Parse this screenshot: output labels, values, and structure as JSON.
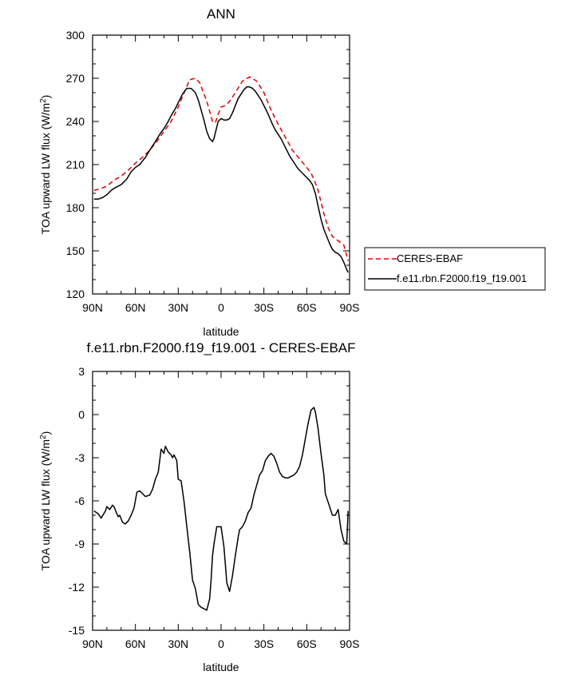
{
  "chart_data": [
    {
      "type": "line",
      "title": "ANN",
      "xlabel": "latitude",
      "ylabel": "TOA upward LW flux (W/m",
      "ylabel_sup": "2",
      "ylabel_end": ")",
      "xlim": [
        -90,
        90
      ],
      "ylim": [
        120,
        300
      ],
      "xtick_values": [
        -90,
        -60,
        -30,
        0,
        30,
        60,
        90
      ],
      "xtick_labels": [
        "90N",
        "60N",
        "30N",
        "0",
        "30S",
        "60S",
        "90S"
      ],
      "ytick_values": [
        120,
        150,
        180,
        210,
        240,
        270,
        300
      ],
      "ytick_labels": [
        "120",
        "150",
        "180",
        "210",
        "240",
        "270",
        "300"
      ],
      "grid": false,
      "legend_position": "outside-right",
      "series": [
        {
          "name": "CERES-EBAF",
          "color": "#dd0000",
          "dash": "dashed",
          "x": [
            -89,
            -85,
            -80,
            -75,
            -70,
            -65,
            -60,
            -55,
            -50,
            -45,
            -40,
            -35,
            -30,
            -25,
            -22,
            -18,
            -15,
            -10,
            -6,
            -4,
            -2,
            0,
            3,
            6,
            10,
            15,
            20,
            25,
            30,
            35,
            40,
            45,
            50,
            55,
            60,
            63,
            65,
            68,
            70,
            72,
            75,
            78,
            82,
            86,
            89
          ],
          "y": [
            192,
            193,
            195,
            199,
            202,
            206,
            211,
            215,
            220,
            226,
            233,
            240,
            250,
            262,
            269,
            270,
            267,
            254,
            240,
            239,
            245,
            250,
            251,
            254,
            260,
            268,
            271,
            268,
            260,
            248,
            238,
            229,
            220,
            214,
            208,
            204,
            200,
            192,
            184,
            176,
            166,
            160,
            157,
            154,
            143
          ]
        },
        {
          "name": "f.e11.rbn.F2000.f19_f19.001",
          "color": "#000000",
          "dash": "solid",
          "x": [
            -89,
            -86,
            -83,
            -80,
            -77,
            -74,
            -70,
            -66,
            -63,
            -60,
            -57,
            -53,
            -50,
            -46,
            -43,
            -40,
            -37,
            -35,
            -32,
            -30,
            -27,
            -24,
            -21,
            -18,
            -16,
            -14,
            -12,
            -10,
            -8,
            -6,
            -5,
            -4,
            -2,
            0,
            2,
            4,
            6,
            8,
            10,
            12,
            14,
            16,
            18,
            20,
            22,
            24,
            26,
            28,
            30,
            33,
            36,
            38,
            40,
            42,
            44,
            46,
            48,
            50,
            52,
            54,
            56,
            58,
            60,
            62,
            64,
            66,
            68,
            70,
            72,
            74,
            76,
            78,
            80,
            82,
            84,
            86,
            88,
            89
          ],
          "y": [
            186,
            186,
            187,
            189,
            192,
            194,
            196,
            200,
            205,
            208,
            210,
            215,
            220,
            226,
            231,
            235,
            240,
            244,
            249,
            253,
            259,
            263,
            263,
            260,
            255,
            248,
            241,
            233,
            228,
            226,
            228,
            232,
            240,
            242,
            241,
            241,
            242,
            246,
            251,
            256,
            259,
            262,
            264,
            264,
            263,
            261,
            258,
            255,
            251,
            245,
            238,
            234,
            231,
            228,
            224,
            220,
            216,
            213,
            210,
            207,
            205,
            203,
            201,
            199,
            196,
            190,
            181,
            172,
            165,
            160,
            155,
            151,
            149,
            148,
            146,
            142,
            137,
            135
          ]
        }
      ]
    },
    {
      "type": "line",
      "title": "f.e11.rbn.F2000.f19_f19.001 - CERES-EBAF",
      "xlabel": "latitude",
      "ylabel": "TOA upward LW flux (W/m",
      "ylabel_sup": "2",
      "ylabel_end": ")",
      "xlim": [
        -90,
        90
      ],
      "ylim": [
        -15,
        3
      ],
      "xtick_values": [
        -90,
        -60,
        -30,
        0,
        30,
        60,
        90
      ],
      "xtick_labels": [
        "90N",
        "60N",
        "30N",
        "0",
        "30S",
        "60S",
        "90S"
      ],
      "ytick_values": [
        -15,
        -12,
        -9,
        -6,
        -3,
        0,
        3
      ],
      "ytick_labels": [
        "-15",
        "-12",
        "-9",
        "-6",
        "-3",
        "0",
        "3"
      ],
      "grid": false,
      "series": [
        {
          "color": "#000000",
          "dash": "solid",
          "x": [
            -89,
            -86,
            -84,
            -81,
            -80,
            -78,
            -76,
            -75,
            -73,
            -72,
            -71,
            -69,
            -67,
            -65,
            -63,
            -61,
            -59,
            -57,
            -55,
            -53,
            -50,
            -48,
            -46,
            -44,
            -43,
            -42,
            -40,
            -39,
            -37,
            -35,
            -34,
            -33,
            -31,
            -30,
            -28,
            -26,
            -24,
            -22,
            -20,
            -18,
            -16,
            -14,
            -12,
            -10,
            -8,
            -7,
            -6,
            -5,
            -3,
            -2,
            0,
            2,
            4,
            5,
            6,
            8,
            9,
            10,
            12,
            13,
            15,
            17,
            19,
            21,
            23,
            25,
            27,
            29,
            31,
            33,
            35,
            37,
            39,
            41,
            43,
            45,
            47,
            49,
            51,
            53,
            55,
            57,
            59,
            61,
            63,
            65,
            66,
            68,
            70,
            72,
            73,
            75,
            76,
            78,
            80,
            82,
            84,
            86,
            88,
            89
          ],
          "y": [
            -6.7,
            -6.9,
            -7.2,
            -6.7,
            -6.4,
            -6.6,
            -6.3,
            -6.4,
            -6.9,
            -7.1,
            -7.0,
            -7.5,
            -7.6,
            -7.4,
            -7.0,
            -6.5,
            -5.4,
            -5.3,
            -5.5,
            -5.7,
            -5.6,
            -5.2,
            -4.5,
            -4.0,
            -3.2,
            -2.4,
            -2.7,
            -2.2,
            -2.6,
            -2.8,
            -3.0,
            -2.8,
            -3.2,
            -4.5,
            -4.6,
            -6.0,
            -7.8,
            -9.5,
            -11.5,
            -12.1,
            -13.2,
            -13.4,
            -13.5,
            -13.6,
            -12.8,
            -11.5,
            -9.8,
            -9.0,
            -7.8,
            -7.8,
            -7.8,
            -9.2,
            -11.7,
            -12.0,
            -12.3,
            -11.2,
            -10.5,
            -9.8,
            -8.5,
            -8.0,
            -7.8,
            -7.4,
            -6.8,
            -6.5,
            -5.6,
            -4.9,
            -4.2,
            -3.9,
            -3.2,
            -2.9,
            -2.7,
            -2.9,
            -3.4,
            -4.0,
            -4.3,
            -4.4,
            -4.4,
            -4.3,
            -4.2,
            -4.0,
            -3.6,
            -2.8,
            -1.7,
            -0.6,
            0.3,
            0.5,
            0.2,
            -1.0,
            -2.7,
            -4.2,
            -5.5,
            -6.1,
            -6.4,
            -7.0,
            -7.0,
            -6.6,
            -8.0,
            -8.8,
            -9.0,
            -6.7
          ]
        }
      ]
    }
  ]
}
